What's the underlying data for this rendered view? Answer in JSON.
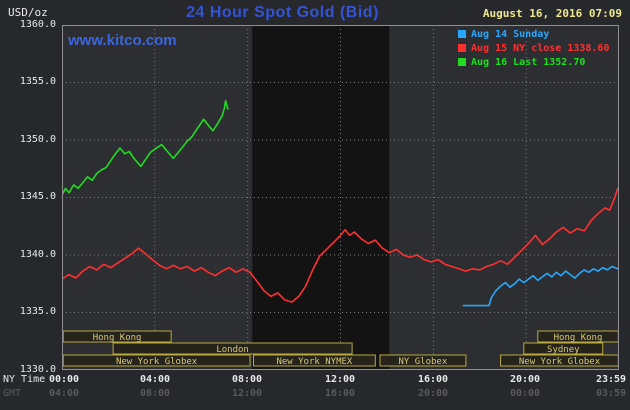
{
  "header": {
    "units": "USD/oz",
    "title": "24 Hour Spot Gold (Bid)",
    "datetime": "August 16, 2016 07:09",
    "watermark": "www.kitco.com"
  },
  "legend": {
    "items": [
      {
        "label": "Aug 14 Sunday",
        "color": "#29a8ff"
      },
      {
        "label": "Aug 15 NY close 1338.60",
        "color": "#ff3030"
      },
      {
        "label": "Aug 16 Last 1352.70",
        "color": "#21dd21"
      }
    ]
  },
  "axes": {
    "ny_label": "NY Time",
    "gmt_label": "GMT",
    "y_ticks": [
      "1360.0",
      "1355.0",
      "1350.0",
      "1345.0",
      "1340.0",
      "1335.0",
      "1330.0"
    ],
    "x_ny": [
      "00:00",
      "04:00",
      "08:00",
      "12:00",
      "16:00",
      "20:00",
      "23:59"
    ],
    "x_gmt": [
      "04:00",
      "08:00",
      "12:00",
      "16:00",
      "20:00",
      "00:00",
      "03:59"
    ]
  },
  "chart_data": {
    "type": "line",
    "title": "24 Hour Spot Gold (Bid)",
    "xlabel": "NY Time (hours)",
    "ylabel": "USD/oz",
    "x_range": [
      0,
      24
    ],
    "y_range": [
      1330,
      1360
    ],
    "y_gridlines": [
      1335,
      1340,
      1345,
      1350,
      1355
    ],
    "x_gridlines": [
      4,
      8,
      12,
      16,
      20
    ],
    "grid": "dotted",
    "legend_position": "top-right",
    "nymex_band": {
      "start": 8.2,
      "end": 14.1
    },
    "theme": {
      "background": "#26282b",
      "plot_bg": "#2c2e31",
      "band": "#131313",
      "grid": "#7d7d7d",
      "border": "#8f8f8f",
      "session_fill": "#25231a",
      "session_border": "#b9a942",
      "session_text": "#d9c878",
      "title_blue": "#3354d8",
      "date_yellow": "#efe98f",
      "axis_text": "#e9e9e9",
      "gmt_text": "#5a5a5a"
    },
    "sessions": [
      {
        "label": "Hong Kong",
        "row": 0,
        "start": 0.05,
        "end": 4.7
      },
      {
        "label": "Hong Kong",
        "row": 0,
        "start": 20.5,
        "end": 23.97
      },
      {
        "label": "London",
        "row": 1,
        "start": 2.2,
        "end": 12.5
      },
      {
        "label": "Sydney",
        "row": 1,
        "start": 19.9,
        "end": 23.3
      },
      {
        "label": "New York Globex",
        "row": 2,
        "start": 0.05,
        "end": 8.1
      },
      {
        "label": "New York NYMEX",
        "row": 2,
        "start": 8.25,
        "end": 13.5
      },
      {
        "label": "NY Globex",
        "row": 2,
        "start": 13.7,
        "end": 17.4
      },
      {
        "label": "New York Globex",
        "row": 2,
        "start": 18.9,
        "end": 23.97
      }
    ],
    "series": [
      {
        "id": "aug14",
        "name": "Aug 14 Sunday",
        "color": "#29a8ff",
        "last": null,
        "points": [
          [
            17.3,
            1335.6
          ],
          [
            18.4,
            1335.6
          ],
          [
            18.5,
            1336.3
          ],
          [
            18.7,
            1336.9
          ],
          [
            18.9,
            1337.3
          ],
          [
            19.1,
            1337.6
          ],
          [
            19.3,
            1337.2
          ],
          [
            19.5,
            1337.5
          ],
          [
            19.7,
            1337.9
          ],
          [
            19.9,
            1337.6
          ],
          [
            20.1,
            1337.9
          ],
          [
            20.3,
            1338.2
          ],
          [
            20.5,
            1337.8
          ],
          [
            20.7,
            1338.1
          ],
          [
            20.9,
            1338.4
          ],
          [
            21.1,
            1338.1
          ],
          [
            21.3,
            1338.5
          ],
          [
            21.5,
            1338.2
          ],
          [
            21.7,
            1338.6
          ],
          [
            21.9,
            1338.3
          ],
          [
            22.1,
            1338.0
          ],
          [
            22.3,
            1338.4
          ],
          [
            22.5,
            1338.7
          ],
          [
            22.7,
            1338.5
          ],
          [
            22.9,
            1338.8
          ],
          [
            23.1,
            1338.6
          ],
          [
            23.3,
            1338.9
          ],
          [
            23.5,
            1338.7
          ],
          [
            23.7,
            1339.0
          ],
          [
            23.95,
            1338.8
          ]
        ]
      },
      {
        "id": "aug15",
        "name": "Aug 15 NY close",
        "color": "#ff3030",
        "last": 1338.6,
        "points": [
          [
            0.0,
            1337.9
          ],
          [
            0.3,
            1338.3
          ],
          [
            0.6,
            1338.0
          ],
          [
            0.9,
            1338.6
          ],
          [
            1.2,
            1339.0
          ],
          [
            1.5,
            1338.7
          ],
          [
            1.8,
            1339.2
          ],
          [
            2.1,
            1338.9
          ],
          [
            2.4,
            1339.3
          ],
          [
            2.7,
            1339.7
          ],
          [
            3.0,
            1340.1
          ],
          [
            3.3,
            1340.6
          ],
          [
            3.6,
            1340.1
          ],
          [
            3.9,
            1339.6
          ],
          [
            4.2,
            1339.1
          ],
          [
            4.5,
            1338.8
          ],
          [
            4.8,
            1339.1
          ],
          [
            5.1,
            1338.8
          ],
          [
            5.4,
            1339.0
          ],
          [
            5.7,
            1338.6
          ],
          [
            6.0,
            1338.9
          ],
          [
            6.3,
            1338.5
          ],
          [
            6.6,
            1338.2
          ],
          [
            6.9,
            1338.6
          ],
          [
            7.2,
            1338.9
          ],
          [
            7.5,
            1338.5
          ],
          [
            7.8,
            1338.8
          ],
          [
            8.1,
            1338.5
          ],
          [
            8.4,
            1337.7
          ],
          [
            8.7,
            1336.9
          ],
          [
            9.0,
            1336.4
          ],
          [
            9.3,
            1336.7
          ],
          [
            9.6,
            1336.1
          ],
          [
            9.9,
            1335.9
          ],
          [
            10.2,
            1336.4
          ],
          [
            10.5,
            1337.3
          ],
          [
            10.8,
            1338.7
          ],
          [
            11.1,
            1339.9
          ],
          [
            11.4,
            1340.5
          ],
          [
            11.7,
            1341.1
          ],
          [
            12.0,
            1341.7
          ],
          [
            12.2,
            1342.2
          ],
          [
            12.4,
            1341.7
          ],
          [
            12.6,
            1342.0
          ],
          [
            12.9,
            1341.4
          ],
          [
            13.2,
            1341.0
          ],
          [
            13.5,
            1341.3
          ],
          [
            13.8,
            1340.6
          ],
          [
            14.1,
            1340.2
          ],
          [
            14.4,
            1340.5
          ],
          [
            14.7,
            1340.0
          ],
          [
            15.0,
            1339.8
          ],
          [
            15.3,
            1340.0
          ],
          [
            15.6,
            1339.6
          ],
          [
            15.9,
            1339.4
          ],
          [
            16.2,
            1339.6
          ],
          [
            16.5,
            1339.2
          ],
          [
            16.8,
            1339.0
          ],
          [
            17.1,
            1338.8
          ],
          [
            17.4,
            1338.6
          ],
          [
            17.7,
            1338.8
          ],
          [
            18.0,
            1338.7
          ],
          [
            18.3,
            1339.0
          ],
          [
            18.6,
            1339.2
          ],
          [
            18.9,
            1339.5
          ],
          [
            19.2,
            1339.2
          ],
          [
            19.5,
            1339.8
          ],
          [
            19.8,
            1340.4
          ],
          [
            20.1,
            1341.0
          ],
          [
            20.4,
            1341.7
          ],
          [
            20.7,
            1340.9
          ],
          [
            21.0,
            1341.4
          ],
          [
            21.3,
            1342.0
          ],
          [
            21.6,
            1342.4
          ],
          [
            21.9,
            1341.9
          ],
          [
            22.2,
            1342.3
          ],
          [
            22.5,
            1342.1
          ],
          [
            22.8,
            1343.0
          ],
          [
            23.1,
            1343.6
          ],
          [
            23.4,
            1344.1
          ],
          [
            23.6,
            1343.9
          ],
          [
            23.8,
            1344.9
          ],
          [
            23.95,
            1345.8
          ]
        ]
      },
      {
        "id": "aug16",
        "name": "Aug 16 Last",
        "color": "#21dd21",
        "last": 1352.7,
        "points": [
          [
            0.0,
            1345.2
          ],
          [
            0.15,
            1345.8
          ],
          [
            0.3,
            1345.4
          ],
          [
            0.5,
            1346.1
          ],
          [
            0.7,
            1345.8
          ],
          [
            0.9,
            1346.3
          ],
          [
            1.1,
            1346.8
          ],
          [
            1.3,
            1346.5
          ],
          [
            1.5,
            1347.1
          ],
          [
            1.7,
            1347.4
          ],
          [
            1.9,
            1347.6
          ],
          [
            2.1,
            1348.2
          ],
          [
            2.3,
            1348.8
          ],
          [
            2.5,
            1349.3
          ],
          [
            2.7,
            1348.8
          ],
          [
            2.9,
            1349.0
          ],
          [
            3.1,
            1348.4
          ],
          [
            3.4,
            1347.7
          ],
          [
            3.6,
            1348.3
          ],
          [
            3.8,
            1348.9
          ],
          [
            4.0,
            1349.2
          ],
          [
            4.3,
            1349.6
          ],
          [
            4.5,
            1349.1
          ],
          [
            4.8,
            1348.4
          ],
          [
            5.0,
            1348.9
          ],
          [
            5.2,
            1349.4
          ],
          [
            5.4,
            1349.9
          ],
          [
            5.6,
            1350.3
          ],
          [
            5.8,
            1350.9
          ],
          [
            6.0,
            1351.5
          ],
          [
            6.1,
            1351.8
          ],
          [
            6.3,
            1351.3
          ],
          [
            6.5,
            1350.8
          ],
          [
            6.7,
            1351.4
          ],
          [
            6.9,
            1352.1
          ],
          [
            7.0,
            1352.8
          ],
          [
            7.05,
            1353.4
          ],
          [
            7.15,
            1352.7
          ]
        ]
      }
    ]
  }
}
